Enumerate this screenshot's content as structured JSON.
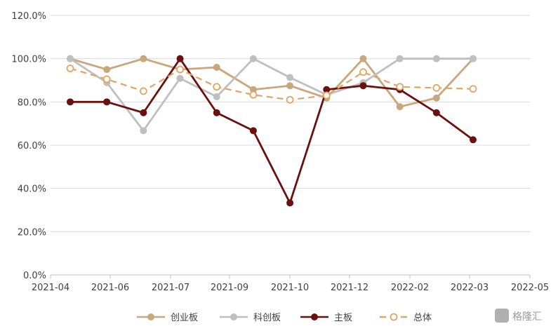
{
  "chart_data": {
    "type": "line",
    "title": "",
    "xlabel": "",
    "ylabel": "",
    "x_tick_labels": [
      "2021-04",
      "2021-06",
      "2021-07",
      "2021-09",
      "2021-10",
      "2021-12",
      "2022-02",
      "2022-03",
      "2022-05"
    ],
    "ylim": [
      0,
      120
    ],
    "y_tick_labels": [
      "0.0%",
      "20.0%",
      "40.0%",
      "60.0%",
      "80.0%",
      "100.0%",
      "120.0%"
    ],
    "x": [
      "2021-04",
      "2021-05",
      "2021-06",
      "2021-07",
      "2021-08",
      "2021-09",
      "2021-10",
      "2021-11",
      "2021-12",
      "2022-01",
      "2022-02",
      "2022-03"
    ],
    "series": [
      {
        "name": "创业板",
        "color": "#C9A77C",
        "style": "solid",
        "marker": "filled-circle",
        "values": [
          100,
          95,
          100,
          95,
          96,
          85.7,
          87.5,
          81.8,
          100,
          77.8,
          81.8,
          100
        ]
      },
      {
        "name": "科创板",
        "color": "#BFBFBF",
        "style": "solid",
        "marker": "filled-circle",
        "values": [
          100,
          88.9,
          66.7,
          90.9,
          82.4,
          100,
          91.3,
          83.3,
          88.9,
          100,
          100,
          100
        ]
      },
      {
        "name": "主板",
        "color": "#6B0F0F",
        "style": "solid",
        "marker": "filled-circle",
        "values": [
          80,
          80,
          75,
          100,
          75,
          66.7,
          33.3,
          85.7,
          87.5,
          85.7,
          75,
          62.5
        ]
      },
      {
        "name": "总体",
        "color": "#E0A464",
        "style": "dashed",
        "marker": "hollow-circle",
        "values": [
          95.5,
          90.5,
          85.0,
          95.0,
          87.0,
          83.3,
          81.0,
          83.0,
          93.8,
          87.0,
          86.5,
          86.0
        ]
      }
    ],
    "grid": "horizontal",
    "legend_position": "bottom"
  },
  "watermark": "格隆汇"
}
